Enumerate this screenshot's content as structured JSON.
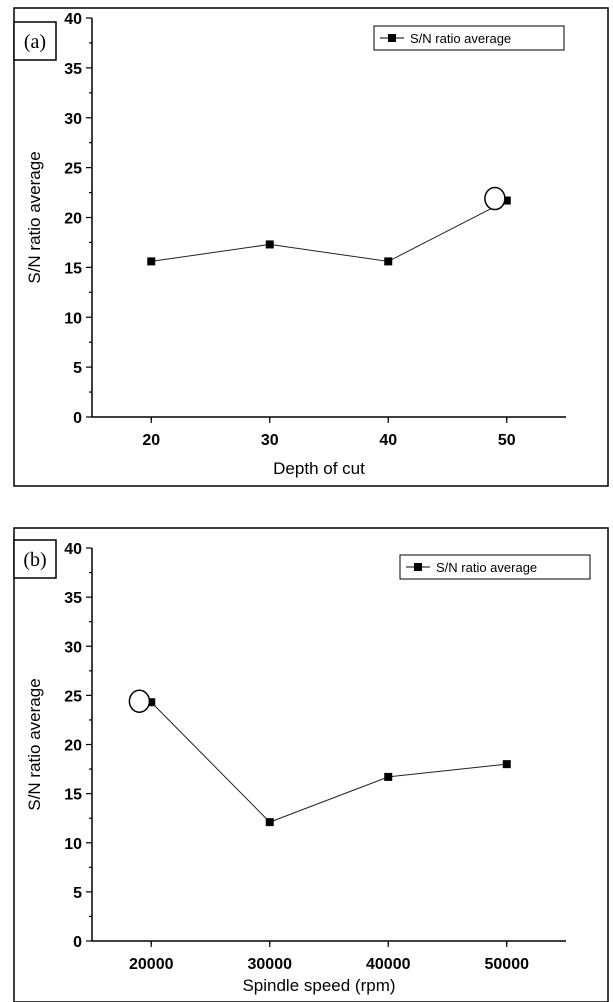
{
  "chart_data": [
    {
      "type": "line",
      "panel_label": "(a)",
      "xlabel": "Depth of cut",
      "ylabel": "S/N ratio average",
      "x": [
        20,
        30,
        40,
        50
      ],
      "x_ticks": [
        "20",
        "30",
        "40",
        "50"
      ],
      "xlim": [
        15,
        55
      ],
      "ylim": [
        0,
        40
      ],
      "y_ticks": [
        "0",
        "5",
        "10",
        "15",
        "20",
        "25",
        "30",
        "35",
        "40"
      ],
      "series": [
        {
          "name": "S/N ratio average",
          "values": [
            15.6,
            17.3,
            15.6,
            21.7
          ]
        }
      ],
      "highlight": {
        "x": 49,
        "y": 21.9
      },
      "legend": "top-right",
      "grid": false,
      "marker": "square"
    },
    {
      "type": "line",
      "panel_label": "(b)",
      "xlabel": "Spindle speed (rpm)",
      "ylabel": "S/N ratio average",
      "x": [
        20000,
        30000,
        40000,
        50000
      ],
      "x_ticks": [
        "20000",
        "30000",
        "40000",
        "50000"
      ],
      "xlim": [
        15000,
        55000
      ],
      "ylim": [
        0,
        40
      ],
      "y_ticks": [
        "0",
        "5",
        "10",
        "15",
        "20",
        "25",
        "30",
        "35",
        "40"
      ],
      "series": [
        {
          "name": "S/N ratio average",
          "values": [
            24.3,
            12.1,
            16.7,
            18.0
          ]
        }
      ],
      "highlight": {
        "x": 19000,
        "y": 24.4
      },
      "legend": "top-right",
      "grid": false,
      "marker": "square"
    }
  ]
}
